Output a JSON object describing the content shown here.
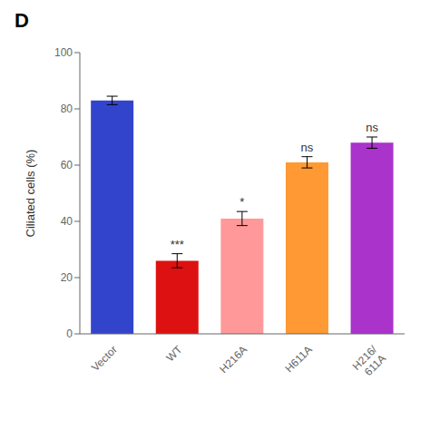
{
  "chart_data": {
    "type": "bar",
    "title": "D",
    "ylabel": "Ciliated cells (%)",
    "categories": [
      "Vector",
      "WT",
      "H216A",
      "H611A",
      "H216/\n611A"
    ],
    "values": [
      83,
      26,
      41,
      61,
      68
    ],
    "errors": [
      1.5,
      2.5,
      2.5,
      2.0,
      2.0
    ],
    "colors": [
      "#3344cc",
      "#dd1111",
      "#ff9999",
      "#ff9933",
      "#aa33cc"
    ],
    "ylim": [
      0,
      100
    ],
    "yticks": [
      0,
      20,
      40,
      60,
      80,
      100
    ],
    "annotations": [
      {
        "category": "WT",
        "text": "***"
      },
      {
        "category": "H216A",
        "text": "*"
      },
      {
        "category": "H611A",
        "text": "ns"
      },
      {
        "category": "H216/\n611A",
        "text": "ns"
      }
    ],
    "grid": false
  }
}
